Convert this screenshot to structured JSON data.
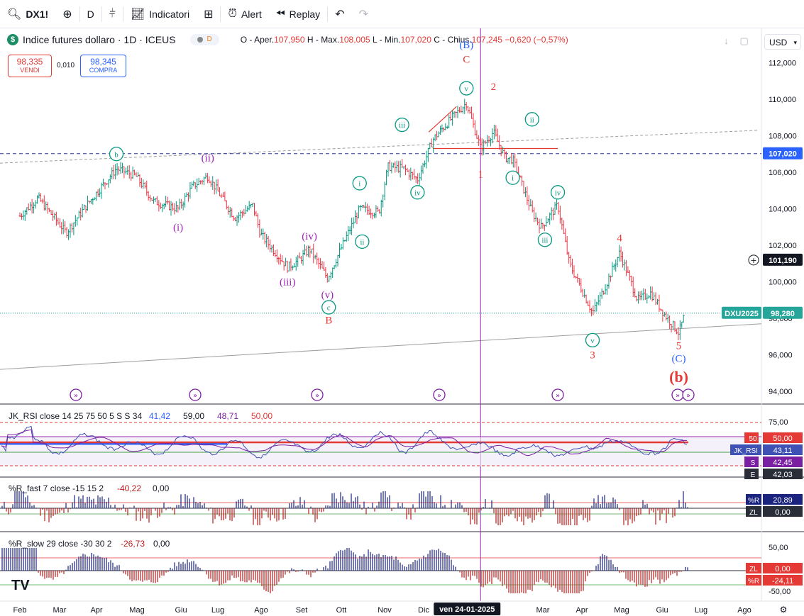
{
  "toolbar": {
    "symbol": "DX1!",
    "interval": "D",
    "indicators_label": "Indicatori",
    "alert_label": "Alert",
    "replay_label": "Replay"
  },
  "header": {
    "title": "Indice futures dollaro · 1D · ICEUS",
    "logo_letter": "$",
    "delay_letter": "D",
    "ohlc": {
      "open_label": "O - Aper.",
      "open": "107,950",
      "high_label": "H - Max.",
      "high": "108,005",
      "low_label": "L - Min.",
      "low": "107,020",
      "close_label": "C - Chius.",
      "close": "107,245",
      "change": "−0,620 (−0,57%)"
    },
    "sell_price": "98,335",
    "sell_label": "VENDI",
    "spread": "0,010",
    "buy_price": "98,345",
    "buy_label": "COMPRA",
    "currency": "USD"
  },
  "colors": {
    "bull": "#089981",
    "bear": "#f23645",
    "wave_blue": "#2962ff",
    "wave_purple": "#9c27b0",
    "wave_green": "#089981",
    "wave_red": "#e53935"
  },
  "chart_data": [
    {
      "type": "candlestick",
      "title": "Indice futures dollaro · 1D · ICEUS",
      "ylim": [
        93.0,
        113.5
      ],
      "y_ticks": [
        "112,000",
        "110,000",
        "108,000",
        "106,000",
        "104,000",
        "102,000",
        "100,000",
        "98,000",
        "96,000",
        "94,000"
      ],
      "x_ticks": [
        "Feb",
        "Mar",
        "Apr",
        "Mag",
        "Giu",
        "Lug",
        "Ago",
        "Set",
        "Ott",
        "Nov",
        "Dic",
        "2",
        "Mar",
        "Apr",
        "Mag",
        "Giu",
        "Lug",
        "Ago"
      ],
      "price_path": [
        [
          "2024-02-01",
          103.6
        ],
        [
          "2024-02-15",
          104.6
        ],
        [
          "2024-03-08",
          102.7
        ],
        [
          "2024-03-25",
          104.3
        ],
        [
          "2024-04-16",
          106.2
        ],
        [
          "2024-05-01",
          105.8
        ],
        [
          "2024-05-15",
          104.4
        ],
        [
          "2024-06-03",
          104.0
        ],
        [
          "2024-06-14",
          105.2
        ],
        [
          "2024-06-26",
          105.8
        ],
        [
          "2024-07-17",
          103.5
        ],
        [
          "2024-07-31",
          104.2
        ],
        [
          "2024-08-06",
          102.6
        ],
        [
          "2024-08-27",
          100.8
        ],
        [
          "2024-09-05",
          101.2
        ],
        [
          "2024-09-13",
          101.8
        ],
        [
          "2024-09-27",
          100.2
        ],
        [
          "2024-10-10",
          102.2
        ],
        [
          "2024-10-22",
          104.0
        ],
        [
          "2024-11-06",
          103.8
        ],
        [
          "2024-11-13",
          106.3
        ],
        [
          "2024-11-25",
          106.2
        ],
        [
          "2024-12-06",
          105.6
        ],
        [
          "2024-12-18",
          107.8
        ],
        [
          "2025-01-02",
          109.0
        ],
        [
          "2025-01-13",
          109.8
        ],
        [
          "2025-01-24",
          107.3
        ],
        [
          "2025-02-03",
          108.2
        ],
        [
          "2025-02-12",
          106.8
        ],
        [
          "2025-02-18",
          106.7
        ],
        [
          "2025-03-05",
          103.8
        ],
        [
          "2025-03-12",
          103.0
        ],
        [
          "2025-03-25",
          104.2
        ],
        [
          "2025-04-03",
          101.0
        ],
        [
          "2025-04-21",
          98.3
        ],
        [
          "2025-04-30",
          99.6
        ],
        [
          "2025-05-12",
          101.6
        ],
        [
          "2025-05-26",
          99.0
        ],
        [
          "2025-06-05",
          99.4
        ],
        [
          "2025-06-16",
          98.2
        ],
        [
          "2025-06-27",
          97.2
        ],
        [
          "2025-07-02",
          98.28
        ]
      ],
      "last_price_label": "DXU2025",
      "last_price": "98,280",
      "level_line": "107,020",
      "crosshair_price": "101,190",
      "crosshair_date": "ven 24-01-2025",
      "wave_labels": [
        {
          "text": "b",
          "style": "circle",
          "color": "green",
          "date": "2024-04-16",
          "price": 107.0
        },
        {
          "text": "(i)",
          "style": "plain",
          "color": "purple",
          "date": "2024-06-03",
          "price": 103.0
        },
        {
          "text": "(ii)",
          "style": "plain",
          "color": "purple",
          "date": "2024-06-26",
          "price": 106.8
        },
        {
          "text": "(iii)",
          "style": "plain",
          "color": "purple",
          "date": "2024-08-27",
          "price": 100.0
        },
        {
          "text": "(iv)",
          "style": "plain",
          "color": "purple",
          "date": "2024-09-13",
          "price": 102.5
        },
        {
          "text": "(v)",
          "style": "plain",
          "color": "purple",
          "date": "2024-09-27",
          "price": 99.3
        },
        {
          "text": "c",
          "style": "circle",
          "color": "green",
          "date": "2024-09-28",
          "price": 98.6
        },
        {
          "text": "B",
          "style": "plain",
          "color": "red",
          "date": "2024-09-28",
          "price": 97.9
        },
        {
          "text": "i",
          "style": "circle",
          "color": "green",
          "date": "2024-10-22",
          "price": 105.4
        },
        {
          "text": "ii",
          "style": "circle",
          "color": "green",
          "date": "2024-10-24",
          "price": 102.2
        },
        {
          "text": "iii",
          "style": "circle",
          "color": "green",
          "date": "2024-11-24",
          "price": 108.6
        },
        {
          "text": "iv",
          "style": "circle",
          "color": "green",
          "date": "2024-12-06",
          "price": 104.9
        },
        {
          "text": "v",
          "style": "circle",
          "color": "green",
          "date": "2025-01-13",
          "price": 110.6
        },
        {
          "text": "(B)",
          "style": "plain",
          "color": "blue",
          "date": "2025-01-13",
          "price": 113.0
        },
        {
          "text": "C",
          "style": "plain",
          "color": "red",
          "date": "2025-01-13",
          "price": 112.2
        },
        {
          "text": "2",
          "style": "plain",
          "color": "red",
          "date": "2025-02-03",
          "price": 110.7
        },
        {
          "text": "1",
          "style": "plain",
          "color": "red",
          "date": "2025-01-24",
          "price": 105.9
        },
        {
          "text": "ii",
          "style": "circle",
          "color": "green",
          "date": "2025-03-05",
          "price": 108.9
        },
        {
          "text": "i",
          "style": "circle",
          "color": "green",
          "date": "2025-02-18",
          "price": 105.7
        },
        {
          "text": "iv",
          "style": "circle",
          "color": "green",
          "date": "2025-03-25",
          "price": 104.9
        },
        {
          "text": "iii",
          "style": "circle",
          "color": "green",
          "date": "2025-03-15",
          "price": 102.3
        },
        {
          "text": "4",
          "style": "plain",
          "color": "red",
          "date": "2025-05-12",
          "price": 102.4
        },
        {
          "text": "v",
          "style": "circle",
          "color": "green",
          "date": "2025-04-21",
          "price": 96.8
        },
        {
          "text": "3",
          "style": "plain",
          "color": "red",
          "date": "2025-04-21",
          "price": 96.0
        },
        {
          "text": "5",
          "style": "plain",
          "color": "red",
          "date": "2025-06-27",
          "price": 96.5
        },
        {
          "text": "(C)",
          "style": "plain",
          "color": "blue",
          "date": "2025-06-27",
          "price": 95.8
        },
        {
          "text": "(b)",
          "style": "plain",
          "color": "red",
          "date": "2025-06-27",
          "price": 94.7
        }
      ]
    },
    {
      "type": "line",
      "title": "JK_RSI close 14 25 75 50 5 S S 34",
      "values_text": [
        "41,42",
        "59,00",
        "48,71",
        "50,00"
      ],
      "y_ticks": [
        "75,00"
      ],
      "scale_labels": [
        {
          "tag": "50",
          "value": "50,00"
        },
        {
          "tag": "JK_RSI",
          "value": "43,11"
        },
        {
          "tag": "S",
          "value": "42,45"
        },
        {
          "tag": "E",
          "value": "42,03"
        }
      ]
    },
    {
      "type": "bar",
      "title": "%R_fast 7 close -15 15 2",
      "values_text": [
        "-40,22",
        "0,00"
      ],
      "scale_labels": [
        {
          "tag": "%R",
          "value": "20,89"
        },
        {
          "tag": "ZL",
          "value": "0,00"
        }
      ]
    },
    {
      "type": "bar",
      "title": "%R_slow 29 close -30 30 2",
      "values_text": [
        "-26,73",
        "0,00"
      ],
      "y_ticks": [
        "50,00",
        "-50,00"
      ],
      "scale_labels": [
        {
          "tag": "ZL",
          "value": "0,00"
        },
        {
          "tag": "%R",
          "value": "-24,11"
        }
      ]
    }
  ]
}
